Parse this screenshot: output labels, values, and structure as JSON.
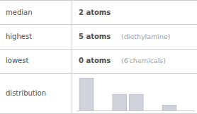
{
  "chart_data": {
    "type": "bar",
    "title": "distribution",
    "annotations": [
      {
        "label": "median",
        "text": "2 atoms"
      },
      {
        "label": "highest",
        "text": "5 atoms",
        "note": "(diethylamine)"
      },
      {
        "label": "lowest",
        "text": "0 atoms",
        "note": "(6 chemicals)"
      }
    ],
    "x": [
      0,
      2,
      3,
      5
    ],
    "values": [
      6,
      3,
      3,
      1
    ],
    "color": "#d0d3dc",
    "xlim": [
      -0.6,
      6.5
    ],
    "ylim": [
      0,
      6.48
    ],
    "xticks": [],
    "yticks": [],
    "tick_labels": false,
    "grid": false
  }
}
